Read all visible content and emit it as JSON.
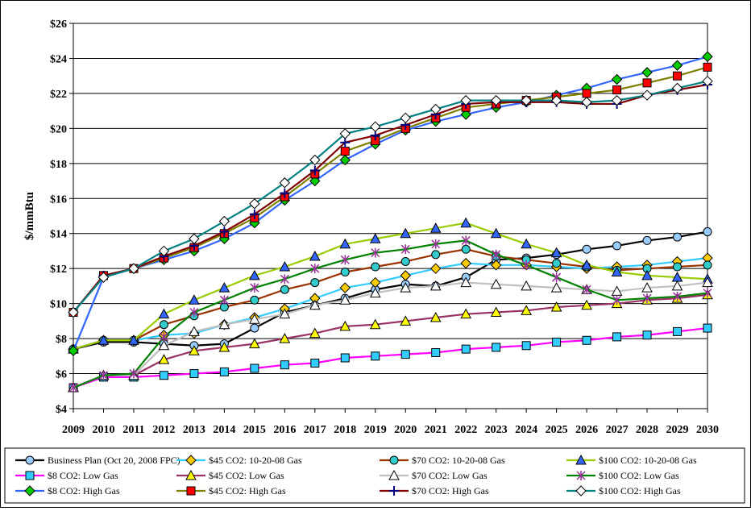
{
  "chart_data": {
    "type": "line",
    "title": "",
    "xlabel": "",
    "ylabel": "$/mmBtu",
    "ylim": [
      4,
      26
    ],
    "yticks": [
      "$4",
      "$6",
      "$8",
      "$10",
      "$12",
      "$14",
      "$16",
      "$18",
      "$20",
      "$22",
      "$24",
      "$26"
    ],
    "x": [
      "2009",
      "2010",
      "2011",
      "2012",
      "2013",
      "2014",
      "2015",
      "2016",
      "2017",
      "2018",
      "2019",
      "2020",
      "2021",
      "2022",
      "2023",
      "2024",
      "2025",
      "2026",
      "2027",
      "2028",
      "2029",
      "2030"
    ],
    "grid": true,
    "legend_position": "bottom",
    "series": [
      {
        "name": "Business Plan (Oct 20, 2008 FPC)",
        "color": "#000000",
        "marker": "circle",
        "fill": "#99ccff",
        "values": [
          7.4,
          7.8,
          7.8,
          7.7,
          7.6,
          7.7,
          8.6,
          9.5,
          9.9,
          10.3,
          10.8,
          11.1,
          11.0,
          11.5,
          12.5,
          12.6,
          12.8,
          13.1,
          13.3,
          13.6,
          13.8,
          14.1
        ]
      },
      {
        "name": "$45 CO2: 10-20-08 Gas",
        "color": "#33ccff",
        "marker": "diamond",
        "fill": "#ffcc00",
        "values": [
          7.4,
          7.9,
          7.9,
          8.2,
          8.3,
          8.8,
          9.2,
          9.7,
          10.3,
          10.9,
          11.2,
          11.6,
          12.0,
          12.3,
          12.2,
          12.2,
          12.1,
          12.0,
          12.1,
          12.2,
          12.4,
          12.6
        ]
      },
      {
        "name": "$70 CO2: 10-20-08 Gas",
        "color": "#993300",
        "marker": "circle",
        "fill": "#33cccc",
        "values": [
          7.4,
          7.9,
          7.9,
          8.8,
          9.3,
          9.8,
          10.2,
          10.8,
          11.2,
          11.8,
          12.1,
          12.4,
          12.8,
          13.1,
          12.7,
          12.5,
          12.3,
          12.1,
          11.9,
          12.0,
          12.1,
          12.2
        ]
      },
      {
        "name": "$100 CO2: 10-20-08 Gas",
        "color": "#99cc00",
        "marker": "triangle",
        "fill": "#3366ff",
        "values": [
          7.4,
          7.9,
          7.9,
          9.4,
          10.2,
          10.9,
          11.6,
          12.1,
          12.7,
          13.4,
          13.7,
          14.0,
          14.3,
          14.6,
          14.0,
          13.4,
          12.9,
          12.2,
          11.8,
          11.6,
          11.5,
          11.4
        ]
      },
      {
        "name": "$8 CO2: Low Gas",
        "color": "#ff00ff",
        "marker": "square",
        "fill": "#33ccff",
        "values": [
          5.2,
          5.8,
          5.8,
          5.9,
          6.0,
          6.1,
          6.3,
          6.5,
          6.6,
          6.9,
          7.0,
          7.1,
          7.2,
          7.4,
          7.5,
          7.6,
          7.8,
          7.9,
          8.1,
          8.2,
          8.4,
          8.6
        ]
      },
      {
        "name": "$45 CO2: Low Gas",
        "color": "#993366",
        "marker": "triangle",
        "fill": "#ffff00",
        "values": [
          5.2,
          5.9,
          5.9,
          6.8,
          7.3,
          7.5,
          7.7,
          8.0,
          8.3,
          8.7,
          8.8,
          9.0,
          9.2,
          9.4,
          9.5,
          9.6,
          9.8,
          9.9,
          10.0,
          10.2,
          10.3,
          10.5
        ]
      },
      {
        "name": "$70 CO2: Low Gas",
        "color": "#c0c0c0",
        "marker": "triangle",
        "fill": "#ffffff",
        "values": [
          5.2,
          5.9,
          5.9,
          7.6,
          8.4,
          8.8,
          9.1,
          9.4,
          9.9,
          10.2,
          10.6,
          10.9,
          11.0,
          11.2,
          11.1,
          11.0,
          10.9,
          10.8,
          10.7,
          10.9,
          11.0,
          11.2
        ]
      },
      {
        "name": "$100 CO2: Low Gas",
        "color": "#008000",
        "marker": "star",
        "fill": "#993399",
        "values": [
          5.2,
          5.9,
          6.0,
          8.1,
          9.5,
          10.2,
          10.9,
          11.4,
          12.0,
          12.5,
          12.9,
          13.1,
          13.4,
          13.6,
          12.8,
          12.2,
          11.5,
          10.8,
          10.2,
          10.3,
          10.4,
          10.6
        ]
      },
      {
        "name": "$8 CO2: High Gas",
        "color": "#3366ff",
        "marker": "diamond",
        "fill": "#00cc00",
        "values": [
          7.3,
          11.5,
          12.0,
          12.5,
          13.0,
          13.7,
          14.6,
          15.9,
          17.0,
          18.2,
          19.1,
          19.9,
          20.4,
          20.8,
          21.2,
          21.5,
          21.9,
          22.3,
          22.8,
          23.2,
          23.6,
          24.1
        ]
      },
      {
        "name": "$45 CO2: High Gas",
        "color": "#808000",
        "marker": "square",
        "fill": "#ff0000",
        "values": [
          9.5,
          11.6,
          12.0,
          12.6,
          13.2,
          14.0,
          14.9,
          16.1,
          17.4,
          18.7,
          19.3,
          20.0,
          20.6,
          21.2,
          21.4,
          21.6,
          21.8,
          22.0,
          22.2,
          22.6,
          23.0,
          23.5
        ]
      },
      {
        "name": "$70 CO2: High Gas",
        "color": "#800000",
        "marker": "plus",
        "fill": "#000080",
        "values": [
          9.5,
          11.6,
          12.0,
          12.7,
          13.3,
          14.1,
          15.1,
          16.3,
          17.6,
          19.2,
          19.6,
          20.2,
          20.8,
          21.4,
          21.5,
          21.5,
          21.5,
          21.4,
          21.4,
          21.9,
          22.2,
          22.5
        ]
      },
      {
        "name": "$100 CO2: High Gas",
        "color": "#008080",
        "marker": "diamond",
        "fill": "#ffffff",
        "values": [
          9.5,
          11.5,
          12.0,
          13.0,
          13.7,
          14.7,
          15.7,
          16.9,
          18.2,
          19.7,
          20.1,
          20.6,
          21.1,
          21.6,
          21.6,
          21.6,
          21.6,
          21.5,
          21.6,
          21.9,
          22.3,
          22.7
        ]
      }
    ]
  }
}
